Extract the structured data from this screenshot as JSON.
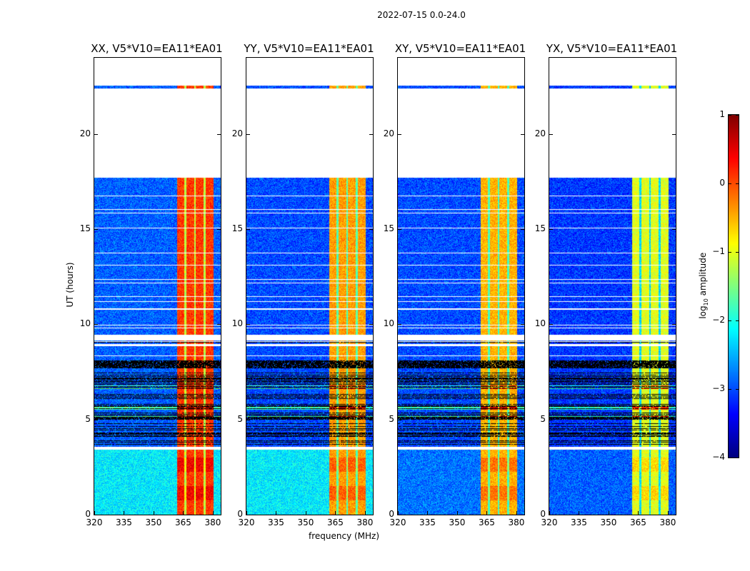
{
  "chart_data": {
    "type": "heatmap",
    "title": "2022-07-15 0.0-24.0",
    "xlabel": "frequency (MHz)",
    "ylabel": "UT (hours)",
    "xlim": [
      320,
      384
    ],
    "ylim": [
      0,
      24
    ],
    "xticks": [
      320,
      335,
      350,
      365,
      380
    ],
    "yticks": [
      0,
      5,
      10,
      15,
      20
    ],
    "colormap": "jet",
    "colorbar": {
      "label_main": "log",
      "label_sub": "10",
      "label_rest": " amplitude",
      "vmin": -4,
      "vmax": 1,
      "ticks": [
        -4,
        -3,
        -2,
        -1,
        0,
        1
      ]
    },
    "rfi_band_mhz": [
      362,
      380.5
    ],
    "rfi_gaps_mhz": [
      366,
      371,
      376
    ],
    "time_segments": [
      {
        "from": 0,
        "to": 3.4,
        "state": "quiet"
      },
      {
        "from": 3.4,
        "to": 3.55,
        "state": "flagged"
      },
      {
        "from": 3.55,
        "to": 7.7,
        "state": "intermittent"
      },
      {
        "from": 7.7,
        "to": 8.1,
        "state": "zero"
      },
      {
        "from": 8.1,
        "to": 8.8,
        "state": "normal"
      },
      {
        "from": 8.8,
        "to": 9.5,
        "state": "flagged-stripes"
      },
      {
        "from": 9.5,
        "to": 17.7,
        "state": "normal"
      },
      {
        "from": 17.7,
        "to": 22.4,
        "state": "flagged"
      },
      {
        "from": 22.4,
        "to": 22.55,
        "state": "normal"
      },
      {
        "from": 22.55,
        "to": 24,
        "state": "flagged"
      }
    ],
    "panels": [
      {
        "title": "XX, V5*V10=EA11*EA01",
        "quiet_level": -2.2,
        "background_level": -2.9,
        "rfi_level": 0.1
      },
      {
        "title": "YY, V5*V10=EA11*EA01",
        "quiet_level": -2.2,
        "background_level": -3.0,
        "rfi_level": -0.4
      },
      {
        "title": "XY, V5*V10=EA11*EA01",
        "quiet_level": -2.8,
        "background_level": -3.0,
        "rfi_level": -0.5
      },
      {
        "title": "YX, V5*V10=EA11*EA01",
        "quiet_level": -2.9,
        "background_level": -3.1,
        "rfi_level": -1.0
      }
    ]
  }
}
